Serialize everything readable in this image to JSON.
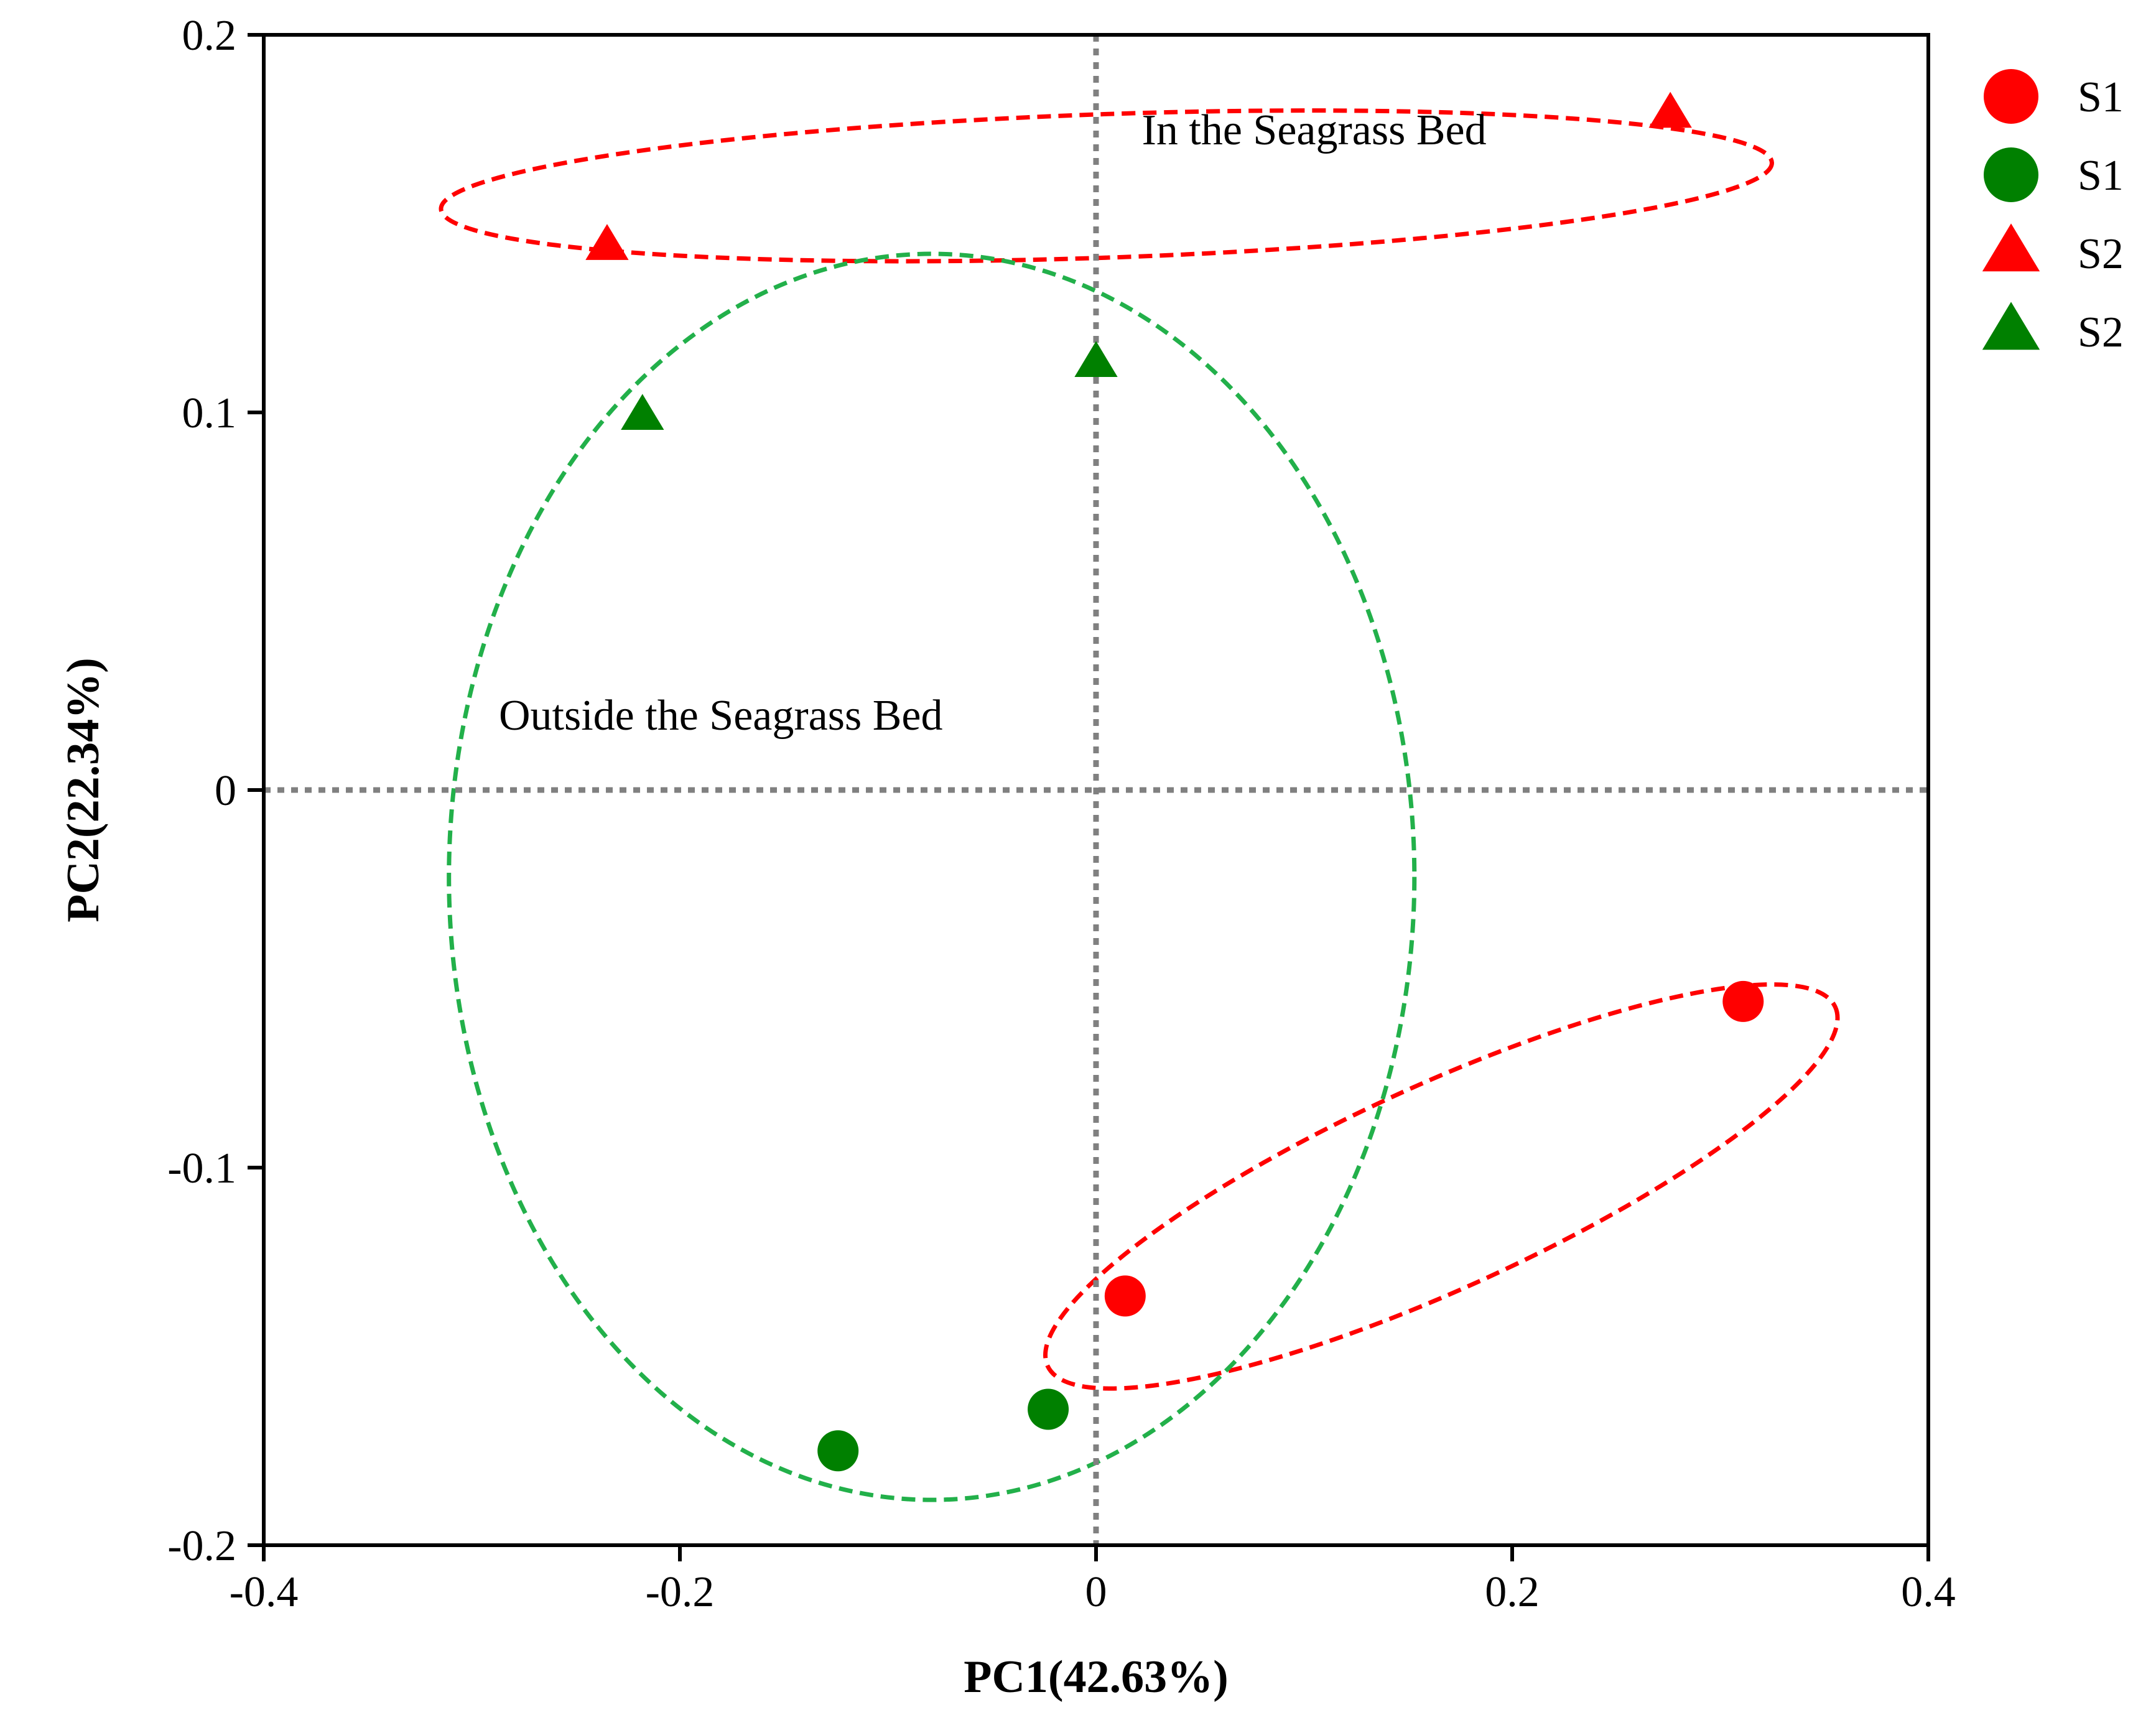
{
  "chart_data": {
    "type": "scatter",
    "title": "",
    "xlabel": "PC1(42.63%)",
    "ylabel": "PC2(22.34%)",
    "xlim": [
      -0.4,
      0.4
    ],
    "ylim": [
      -0.2,
      0.2
    ],
    "x_ticks": [
      -0.4,
      -0.2,
      0,
      0.2,
      0.4
    ],
    "x_tick_labels": [
      "-0.4",
      "-0.2",
      "0",
      "0.2",
      "0.4"
    ],
    "y_ticks": [
      -0.2,
      -0.1,
      0,
      0.1,
      0.2
    ],
    "y_tick_labels": [
      "-0.2",
      "-0.1",
      "0",
      "0.1",
      "0.2"
    ],
    "grid": false,
    "reference_lines": {
      "x": 0,
      "y": 0,
      "style": "dotted",
      "color": "#808080"
    },
    "series": [
      {
        "name": "S1",
        "marker": "circle",
        "color": "#ff0000",
        "points": [
          [
            0.014,
            -0.134
          ],
          [
            0.311,
            -0.056
          ]
        ]
      },
      {
        "name": "S1",
        "marker": "circle",
        "color": "#008000",
        "points": [
          [
            -0.124,
            -0.175
          ],
          [
            -0.023,
            -0.164
          ]
        ]
      },
      {
        "name": "S2",
        "marker": "triangle",
        "color": "#ff0000",
        "points": [
          [
            -0.235,
            0.144
          ],
          [
            0.276,
            0.179
          ]
        ]
      },
      {
        "name": "S2",
        "marker": "triangle",
        "color": "#008000",
        "points": [
          [
            -0.218,
            0.099
          ],
          [
            0.0,
            0.113
          ]
        ]
      }
    ],
    "ellipses": [
      {
        "name": "in-seagrass-top",
        "color": "#ff0000",
        "center": [
          0.005,
          0.16
        ],
        "rx": 0.32,
        "ry": 0.019,
        "angle_deg": 2.0
      },
      {
        "name": "in-seagrass-bottom",
        "color": "#ff0000",
        "center": [
          0.166,
          -0.105
        ],
        "rx": 0.208,
        "ry": 0.027,
        "angle_deg": 24.5
      },
      {
        "name": "outside-seagrass",
        "color": "#22b04a",
        "center": [
          -0.079,
          -0.023
        ],
        "rx": 0.232,
        "ry": 0.165,
        "angle_deg": 0
      }
    ],
    "annotations": [
      {
        "text": "In the Seagrass Bed",
        "x": 0.022,
        "y": 0.171
      },
      {
        "text": "Outside the Seagrass Bed",
        "x": -0.287,
        "y": 0.016
      }
    ],
    "legend": {
      "position": "right",
      "entries": [
        {
          "label": "S1",
          "marker": "circle",
          "color": "#ff0000"
        },
        {
          "label": "S1",
          "marker": "circle",
          "color": "#008000"
        },
        {
          "label": "S2",
          "marker": "triangle",
          "color": "#ff0000"
        },
        {
          "label": "S2",
          "marker": "triangle",
          "color": "#008000"
        }
      ]
    }
  }
}
